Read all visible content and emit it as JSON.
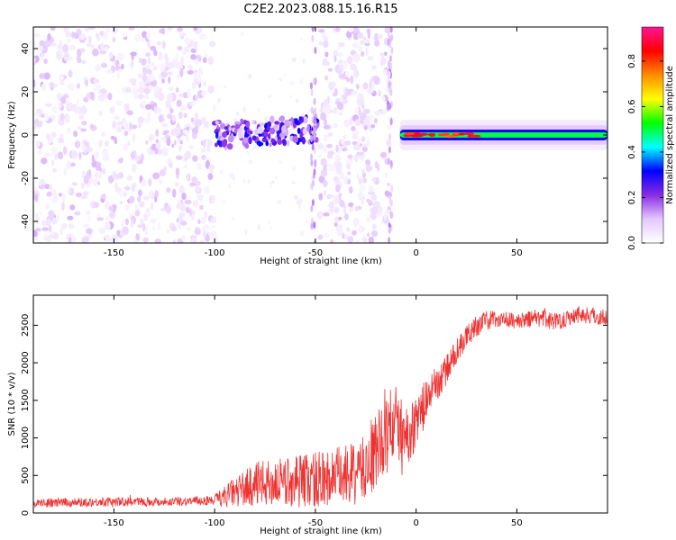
{
  "title": "C2E2.2023.088.15.16.R15",
  "chart_data": [
    {
      "type": "heatmap",
      "xlabel": "Height of straight line (km)",
      "ylabel": "Frequency (Hz)",
      "xlim": [
        -190,
        95
      ],
      "ylim": [
        -50,
        50
      ],
      "x_ticks": [
        -150,
        -100,
        -50,
        0,
        50
      ],
      "x_tick_labels": [
        "-150",
        "-100",
        "-50",
        "0",
        "50"
      ],
      "y_ticks": [
        -40,
        -20,
        0,
        20,
        40
      ],
      "y_tick_labels": [
        "-40",
        "-20",
        "0",
        "20",
        "40"
      ],
      "grid": false,
      "colorbar": {
        "label": "Normalized spectral amplitude",
        "range": [
          0,
          0.95
        ],
        "ticks": [
          0.0,
          0.2,
          0.4,
          0.6,
          0.8
        ],
        "tick_labels": [
          "0.0",
          "0.2",
          "0.4",
          "0.6",
          "0.8"
        ],
        "colormap": [
          "#ffffff",
          "#e4c8ff",
          "#8a2be2",
          "#0000ff",
          "#00ffff",
          "#00ff00",
          "#ffff00",
          "#ff8c00",
          "#ff0000",
          "#ff1493"
        ]
      },
      "regions": [
        {
          "x": [
            -190,
            -100
          ],
          "description": "broadband purple noise",
          "amplitude": 0.05
        },
        {
          "x": [
            -100,
            -50
          ],
          "description": "sparse noise with band near 0 Hz",
          "amplitude": 0.15
        },
        {
          "x": [
            -48,
            -13
          ],
          "description": "broadband purple noise",
          "amplitude": 0.05
        },
        {
          "x": [
            -10,
            95
          ],
          "description": "narrow band at 0 Hz",
          "amplitude": 0.5
        }
      ]
    },
    {
      "type": "line",
      "xlabel": "Height of straight line (km)",
      "ylabel": "SNR (10 * v/v)",
      "xlim": [
        -190,
        95
      ],
      "ylim": [
        0,
        2900
      ],
      "x_ticks": [
        -150,
        -100,
        -50,
        0,
        50
      ],
      "x_tick_labels": [
        "-150",
        "-100",
        "-50",
        "0",
        "50"
      ],
      "y_ticks": [
        0,
        500,
        1000,
        1500,
        2000,
        2500
      ],
      "y_tick_labels": [
        "0",
        "500",
        "1000",
        "1500",
        "2000",
        "2500"
      ],
      "grid": false,
      "color": "#ee3333",
      "series": [
        {
          "x": [
            -190,
            -170,
            -150,
            -130,
            -110,
            -100,
            -95,
            -90,
            -80,
            -70,
            -60,
            -50,
            -40,
            -30,
            -25,
            -20,
            -15,
            -10,
            -5,
            0,
            5,
            10,
            15,
            20,
            25,
            30,
            40,
            50,
            60,
            70,
            80,
            95
          ],
          "values": [
            130,
            140,
            150,
            150,
            160,
            170,
            220,
            280,
            380,
            400,
            430,
            450,
            480,
            520,
            600,
            800,
            1100,
            1200,
            1000,
            1200,
            1500,
            1700,
            1900,
            2150,
            2350,
            2500,
            2600,
            2550,
            2600,
            2550,
            2650,
            2600
          ],
          "noise_amplitude": [
            60,
            60,
            60,
            60,
            60,
            70,
            150,
            200,
            300,
            320,
            350,
            400,
            400,
            420,
            450,
            500,
            600,
            500,
            400,
            350,
            300,
            250,
            200,
            180,
            150,
            150,
            120,
            100,
            120,
            120,
            120,
            120
          ]
        }
      ]
    }
  ]
}
